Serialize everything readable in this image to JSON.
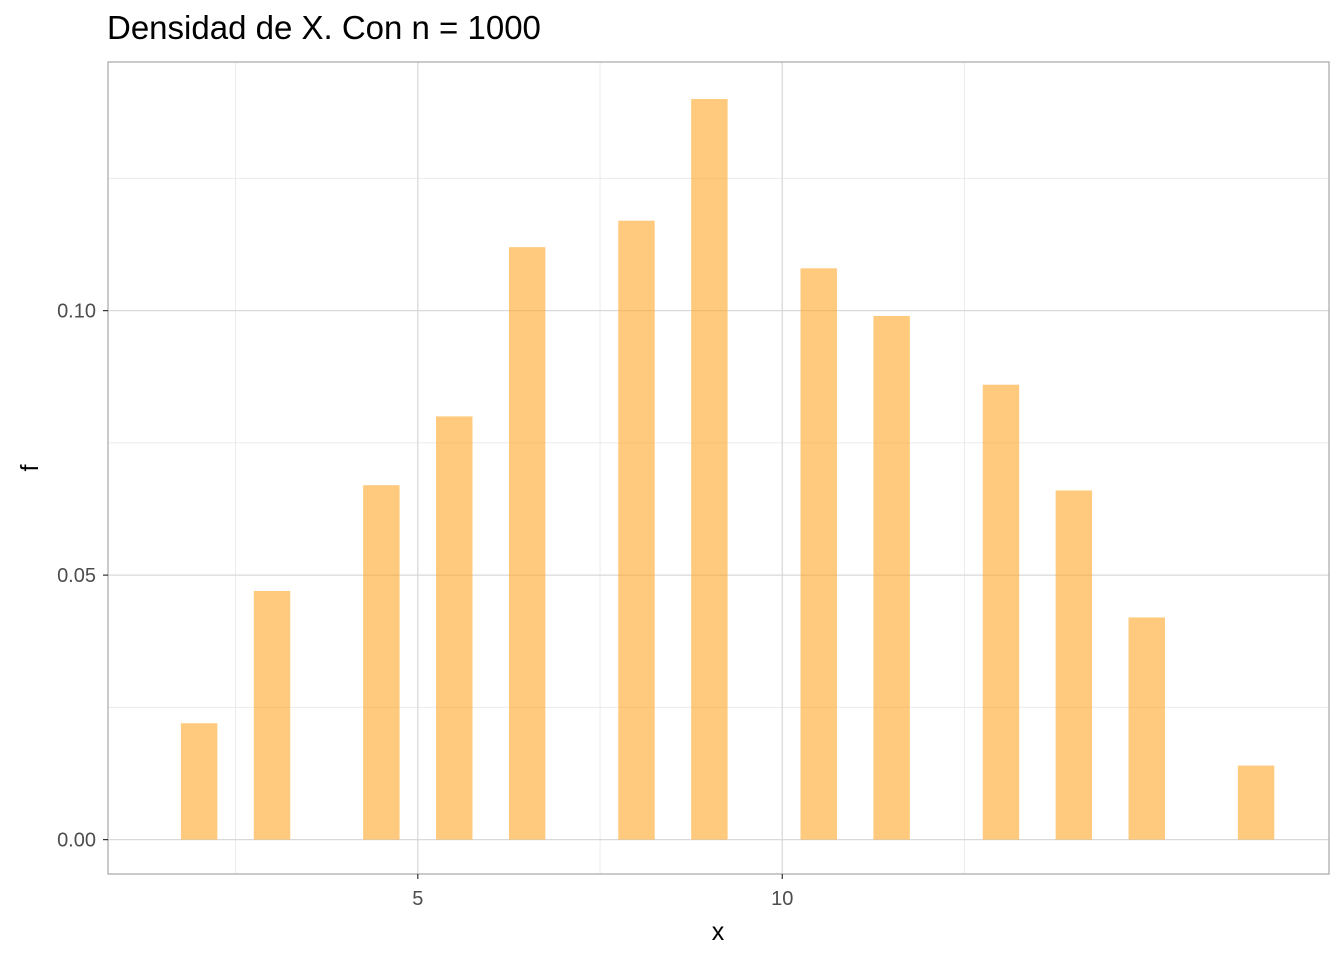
{
  "chart_data": {
    "type": "bar",
    "title": "Densidad de X. Con n = 1000",
    "xlabel": "x",
    "ylabel": "f",
    "x": [
      2,
      3,
      4.5,
      5.5,
      6.5,
      8,
      9,
      10.5,
      11.5,
      13,
      14,
      15,
      16.5
    ],
    "values": [
      0.022,
      0.047,
      0.067,
      0.08,
      0.112,
      0.117,
      0.14,
      0.108,
      0.099,
      0.086,
      0.066,
      0.042,
      0.014
    ],
    "xlim": [
      0.75,
      17.5
    ],
    "ylim": [
      -0.0065,
      0.147
    ],
    "x_ticks": [
      5,
      10
    ],
    "x_tick_labels": [
      "5",
      "10"
    ],
    "y_ticks": [
      0.0,
      0.05,
      0.1
    ],
    "y_tick_labels": [
      "0.00",
      "0.05",
      "0.10"
    ],
    "grid": true,
    "bar_color": "#FFA726",
    "bar_opacity": 0.6
  }
}
